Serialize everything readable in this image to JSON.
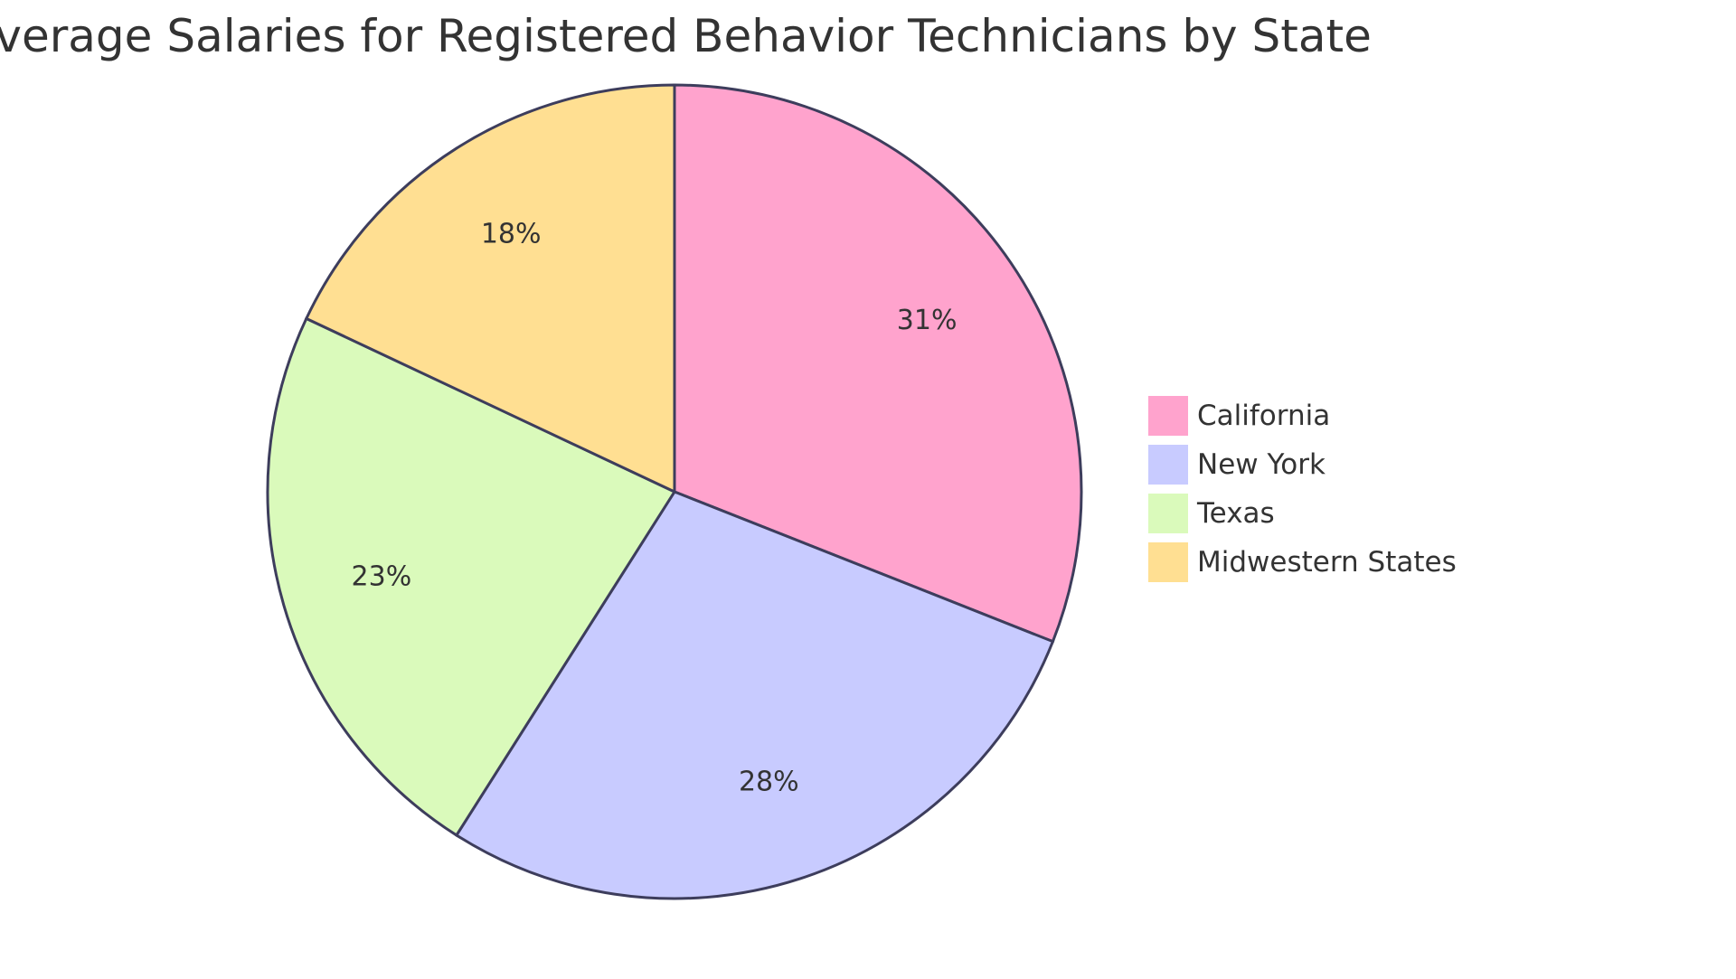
{
  "chart_data": {
    "type": "pie",
    "title": "Average Salaries for Registered Behavior Technicians by State",
    "slices": [
      {
        "label": "California",
        "value": 31,
        "display": "31%",
        "color": "#FFA3CD"
      },
      {
        "label": "New York",
        "value": 28,
        "display": "28%",
        "color": "#C8CBFF"
      },
      {
        "label": "Texas",
        "value": 23,
        "display": "23%",
        "color": "#DAFABB"
      },
      {
        "label": "Midwestern States",
        "value": 18,
        "display": "18%",
        "color": "#FFDF92"
      }
    ],
    "legend": {
      "position": "right",
      "items": [
        "California",
        "New York",
        "Texas",
        "Midwestern States"
      ]
    },
    "start_angle": "12 o'clock",
    "direction": "clockwise"
  }
}
